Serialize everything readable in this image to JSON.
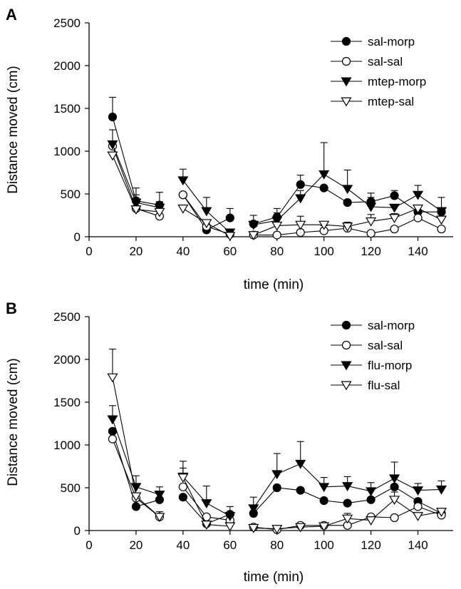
{
  "chart_data": [
    {
      "panel_label": "A",
      "type": "line",
      "xlabel": "time (min)",
      "ylabel": "Distance moved (cm)",
      "xlim": [
        0,
        155
      ],
      "ylim": [
        0,
        2500
      ],
      "xticks": [
        0,
        20,
        40,
        60,
        80,
        100,
        120,
        140
      ],
      "yticks": [
        0,
        500,
        1000,
        1500,
        2000,
        2500
      ],
      "grid": false,
      "legend_position": "top-right",
      "x": [
        10,
        20,
        30,
        40,
        50,
        60,
        70,
        80,
        90,
        100,
        110,
        120,
        130,
        140,
        150
      ],
      "segments": [
        [
          0,
          2
        ],
        [
          3,
          5
        ],
        [
          6,
          14
        ]
      ],
      "series": [
        {
          "name": "sal-morp",
          "marker": "filled-circle",
          "values": [
            1400,
            420,
            370,
            490,
            80,
            220,
            150,
            230,
            610,
            570,
            400,
            410,
            480,
            290,
            290
          ],
          "errors": [
            230,
            150,
            150,
            0,
            0,
            110,
            100,
            100,
            110,
            0,
            0,
            100,
            60,
            0,
            0
          ]
        },
        {
          "name": "sal-sal",
          "marker": "open-circle",
          "values": [
            1060,
            330,
            240,
            490,
            120,
            30,
            20,
            20,
            50,
            70,
            100,
            40,
            90,
            220,
            90
          ],
          "errors": [
            0,
            0,
            0,
            0,
            0,
            0,
            0,
            0,
            0,
            60,
            50,
            0,
            0,
            0,
            0
          ]
        },
        {
          "name": "mtep-morp",
          "marker": "filled-triangle-down",
          "values": [
            1080,
            400,
            340,
            660,
            300,
            50,
            140,
            190,
            450,
            730,
            560,
            350,
            340,
            490,
            300
          ],
          "errors": [
            170,
            90,
            70,
            130,
            160,
            0,
            0,
            90,
            90,
            370,
            220,
            110,
            0,
            110,
            160
          ]
        },
        {
          "name": "mtep-sal",
          "marker": "open-triangle-down",
          "values": [
            950,
            320,
            290,
            330,
            160,
            10,
            20,
            130,
            140,
            140,
            120,
            180,
            220,
            330,
            200
          ],
          "errors": [
            0,
            0,
            0,
            0,
            0,
            0,
            0,
            70,
            100,
            40,
            50,
            80,
            50,
            0,
            70
          ]
        }
      ]
    },
    {
      "panel_label": "B",
      "type": "line",
      "xlabel": "time (min)",
      "ylabel": "Distance moved (cm)",
      "xlim": [
        0,
        155
      ],
      "ylim": [
        0,
        2500
      ],
      "xticks": [
        0,
        20,
        40,
        60,
        80,
        100,
        120,
        140
      ],
      "yticks": [
        0,
        500,
        1000,
        1500,
        2000,
        2500
      ],
      "grid": false,
      "legend_position": "top-right",
      "x": [
        10,
        20,
        30,
        40,
        50,
        60,
        70,
        80,
        90,
        100,
        110,
        120,
        130,
        140,
        150
      ],
      "segments": [
        [
          0,
          2
        ],
        [
          3,
          5
        ],
        [
          6,
          14
        ]
      ],
      "series": [
        {
          "name": "sal-morp",
          "marker": "filled-circle",
          "values": [
            1160,
            280,
            360,
            390,
            80,
            190,
            200,
            500,
            470,
            350,
            320,
            360,
            510,
            340,
            200
          ],
          "errors": [
            0,
            0,
            0,
            0,
            0,
            90,
            0,
            0,
            0,
            0,
            0,
            0,
            0,
            0,
            0
          ]
        },
        {
          "name": "sal-sal",
          "marker": "open-circle",
          "values": [
            1070,
            380,
            160,
            510,
            160,
            120,
            40,
            10,
            60,
            60,
            60,
            160,
            150,
            280,
            180
          ],
          "errors": [
            0,
            0,
            0,
            0,
            0,
            0,
            0,
            0,
            0,
            0,
            0,
            0,
            0,
            0,
            0
          ]
        },
        {
          "name": "flu-morp",
          "marker": "filled-triangle-down",
          "values": [
            1300,
            510,
            420,
            630,
            320,
            170,
            260,
            660,
            780,
            510,
            520,
            460,
            610,
            470,
            480
          ],
          "errors": [
            160,
            130,
            90,
            180,
            200,
            0,
            130,
            240,
            260,
            110,
            110,
            100,
            190,
            80,
            100
          ]
        },
        {
          "name": "flu-sal",
          "marker": "open-triangle-down",
          "values": [
            1790,
            400,
            160,
            620,
            70,
            50,
            30,
            20,
            40,
            50,
            140,
            120,
            360,
            170,
            220
          ],
          "errors": [
            330,
            0,
            60,
            110,
            0,
            0,
            0,
            0,
            0,
            0,
            60,
            0,
            90,
            0,
            0
          ]
        }
      ]
    }
  ]
}
